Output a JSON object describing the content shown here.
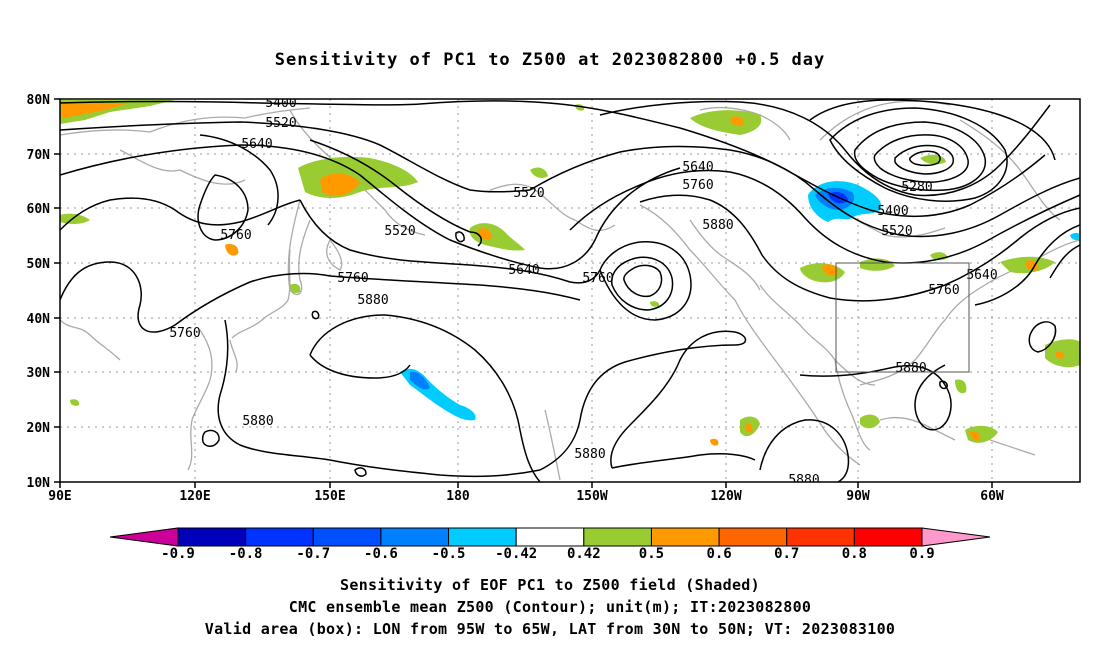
{
  "title": "Sensitivity of PC1 to Z500 at 2023082800 +0.5 day",
  "map": {
    "lon_labels": [
      "90E",
      "120E",
      "150E",
      "180",
      "150W",
      "120W",
      "90W",
      "60W"
    ],
    "lat_labels": [
      "80N",
      "70N",
      "60N",
      "50N",
      "40N",
      "30N",
      "20N",
      "10N"
    ],
    "lon_range": [
      90,
      315
    ],
    "lat_range": [
      10,
      80
    ],
    "contour_labels": [
      "5400",
      "5520",
      "5640",
      "5520",
      "5520",
      "5640",
      "5760",
      "5760",
      "5760",
      "5880",
      "5760",
      "5880",
      "5880",
      "5640",
      "5760",
      "5880",
      "5280",
      "5400",
      "5520",
      "5640",
      "5760",
      "5880",
      "5880"
    ],
    "valid_box": {
      "lon": [
        265,
        295
      ],
      "lat": [
        30,
        50
      ]
    },
    "colors": {
      "coast": "#aaaaaa",
      "grid": "#999999",
      "contour": "#000000",
      "green": "#99cc33",
      "orange": "#ff9900",
      "lightblue": "#00ccff",
      "blue": "#0080ff",
      "darkblue": "#0033ff"
    }
  },
  "colorbar": {
    "labels": [
      "-0.9",
      "-0.8",
      "-0.7",
      "-0.6",
      "-0.5",
      "-0.42",
      "0.42",
      "0.5",
      "0.6",
      "0.7",
      "0.8",
      "0.9"
    ],
    "colors": [
      "#0000bb",
      "#0033ff",
      "#0050ff",
      "#0080ff",
      "#00ccff",
      "#ffffff",
      "#99cc33",
      "#ff9900",
      "#ff6600",
      "#ff3300",
      "#ff0000"
    ],
    "low_color": "#cc0099",
    "high_color": "#ff99cc"
  },
  "caption": {
    "line1": "Sensitivity of EOF PC1 to Z500 field (Shaded)",
    "line2": "CMC ensemble mean Z500 (Contour); unit(m); IT:2023082800",
    "line3": "Valid area (box): LON from 95W to 65W, LAT from 30N to 50N; VT: 2023083100"
  }
}
